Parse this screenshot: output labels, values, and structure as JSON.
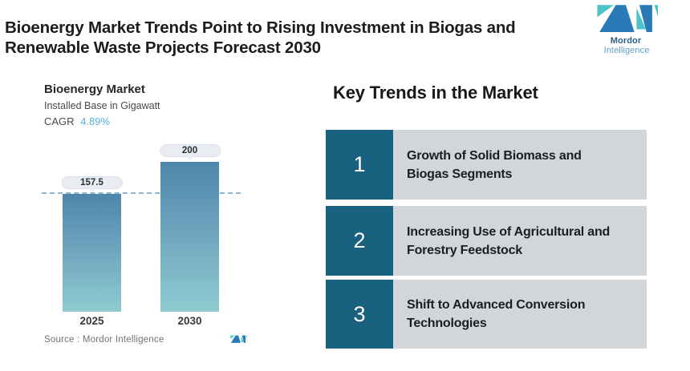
{
  "header": {
    "title": "Bioenergy Market Trends Point to Rising Investment in Biogas and\nRenewable Waste Projects Forecast 2030",
    "logo": {
      "word1": "Mordor",
      "word2": "Intelligence"
    }
  },
  "chart": {
    "title": "Bioenergy Market",
    "subtitle": "Installed Base in Gigawatt",
    "cagr_label": "CAGR",
    "cagr_value": "4.89%",
    "source": "Source : Mordor Intelligence"
  },
  "chart_data": {
    "type": "bar",
    "title": "Bioenergy Market",
    "subtitle": "Installed Base in Gigawatt",
    "cagr": "4.89%",
    "categories": [
      "2025",
      "2030"
    ],
    "values": [
      157.5,
      200
    ],
    "value_labels": [
      "157.5",
      "200"
    ],
    "xlabel": "",
    "ylabel": "Installed Base in Gigawatt",
    "ylim": [
      0,
      220
    ],
    "reference_line": 157.5,
    "grid": false,
    "legend": "none",
    "bar_gradient_top": "#4e86ac",
    "bar_gradient_bottom": "#8ecbd1",
    "reference_line_color": "#8fb4cd",
    "source": "Source : Mordor Intelligence"
  },
  "trends": {
    "heading": "Key Trends in the Market",
    "items": [
      {
        "number": "1",
        "text": "Growth of Solid Biomass and\nBiogas Segments"
      },
      {
        "number": "2",
        "text": "Increasing Use of Agricultural and\nForestry Feedstock"
      },
      {
        "number": "3",
        "text": "Shift to Advanced Conversion\nTechnologies"
      }
    ]
  },
  "colors": {
    "brand_blue": "#2b7ab8",
    "brand_teal": "#4ec3c7",
    "number_box": "#18617f",
    "trend_box": "#d2d6d9",
    "cagr_accent": "#58afda",
    "dashed_line": "#8fb4cd",
    "bar_top": "#4e86ac",
    "bar_bottom": "#8ecbd1"
  }
}
